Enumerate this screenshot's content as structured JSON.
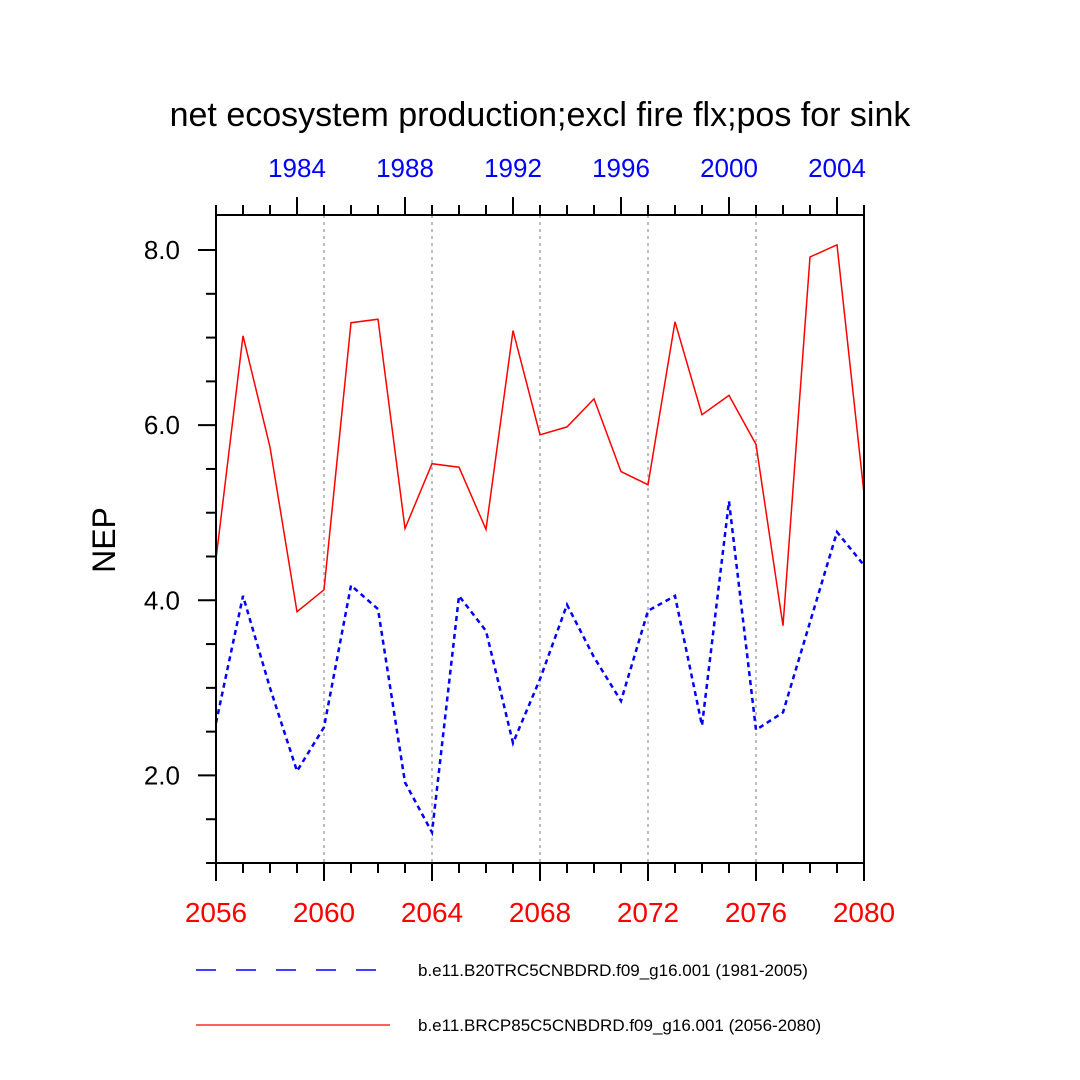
{
  "chart_data": {
    "type": "line",
    "title": "net ecosystem production;excl fire flx;pos for sink",
    "ylabel": "NEP",
    "xlabel": "",
    "ylim": [
      1.0,
      8.4
    ],
    "grid": "vertical dotted at labeled bottom ticks",
    "bottom_axis": {
      "color": "#ff0000",
      "range": [
        2056,
        2080
      ],
      "tick_labels": [
        "2056",
        "2060",
        "2064",
        "2068",
        "2072",
        "2076",
        "2080"
      ],
      "tick_values": [
        2056,
        2060,
        2064,
        2068,
        2072,
        2076,
        2080
      ]
    },
    "top_axis": {
      "color": "#0000ff",
      "range": [
        1981,
        2005
      ],
      "tick_labels": [
        "1984",
        "1988",
        "1992",
        "1996",
        "2000",
        "2004"
      ],
      "tick_values": [
        1984,
        1988,
        1992,
        1996,
        2000,
        2004
      ]
    },
    "y_axis": {
      "tick_labels": [
        "2.0",
        "4.0",
        "6.0",
        "8.0"
      ],
      "tick_values": [
        2.0,
        4.0,
        6.0,
        8.0
      ],
      "minor_step": 0.5
    },
    "series": [
      {
        "name": "b.e11.B20TRC5CNBDRD.f09_g16.001 (1981-2005)",
        "color": "#0000ff",
        "dash": "dashed",
        "x_axis": "top",
        "x": [
          1981,
          1982,
          1983,
          1984,
          1985,
          1986,
          1987,
          1988,
          1989,
          1990,
          1991,
          1992,
          1993,
          1994,
          1995,
          1996,
          1997,
          1998,
          1999,
          2000,
          2001,
          2002,
          2003,
          2004,
          2005
        ],
        "values": [
          2.6,
          4.05,
          3.0,
          2.05,
          2.55,
          4.17,
          3.9,
          1.92,
          1.35,
          4.05,
          3.65,
          2.37,
          3.1,
          3.95,
          3.35,
          2.85,
          3.88,
          4.05,
          2.57,
          5.13,
          2.52,
          2.72,
          3.75,
          4.78,
          4.4
        ]
      },
      {
        "name": "b.e11.BRCP85C5CNBDRD.f09_g16.001 (2056-2080)",
        "color": "#ff0000",
        "dash": "solid",
        "x_axis": "bottom",
        "x": [
          2056,
          2057,
          2058,
          2059,
          2060,
          2061,
          2062,
          2063,
          2064,
          2065,
          2066,
          2067,
          2068,
          2069,
          2070,
          2071,
          2072,
          2073,
          2074,
          2075,
          2076,
          2077,
          2078,
          2079,
          2080
        ],
        "values": [
          4.47,
          7.02,
          5.75,
          3.87,
          4.12,
          7.17,
          7.21,
          4.82,
          5.56,
          5.52,
          4.81,
          7.08,
          5.89,
          5.98,
          6.3,
          5.47,
          5.32,
          7.18,
          6.12,
          6.34,
          5.78,
          3.71,
          7.92,
          8.06,
          5.22
        ]
      }
    ]
  }
}
